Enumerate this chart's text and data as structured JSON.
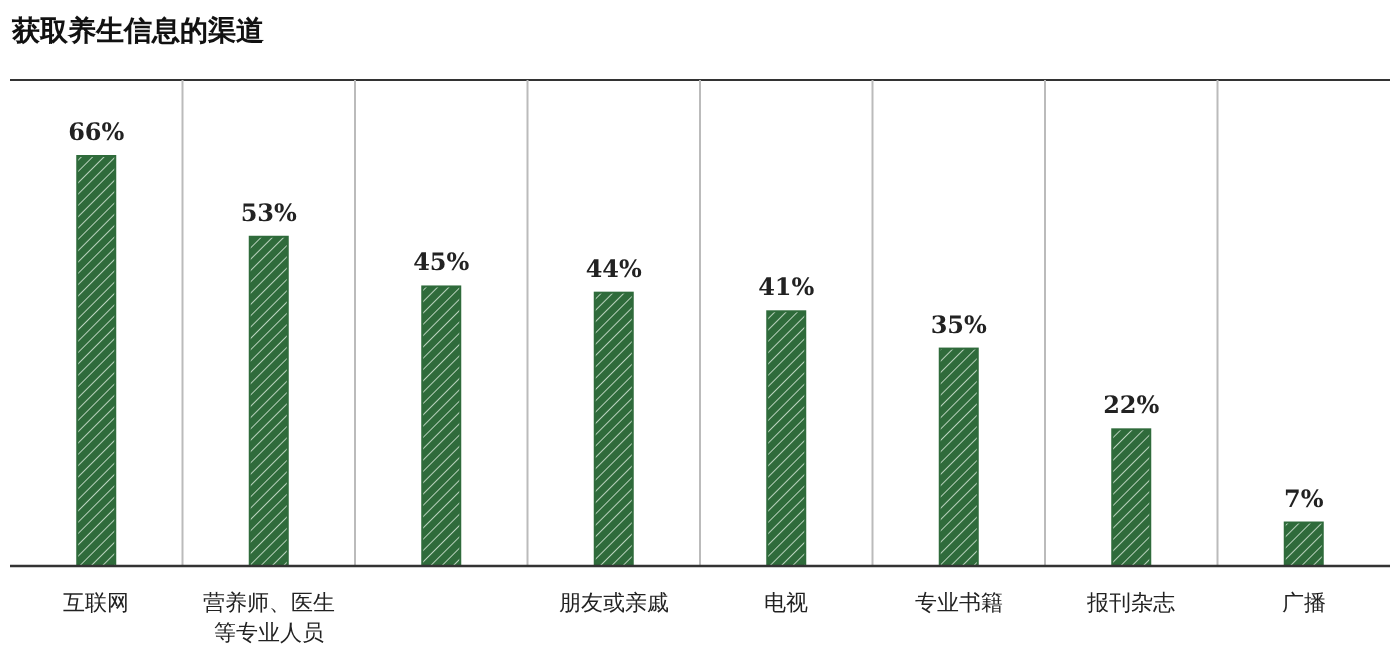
{
  "chart_data": {
    "type": "bar",
    "title": "获取养生信息的渠道",
    "categories": [
      "互联网",
      "营养师、医生等专业人员",
      null,
      "朋友或亲戚",
      "电视",
      "专业书籍",
      "报刊杂志",
      "广播"
    ],
    "values": [
      66,
      53,
      45,
      44,
      41,
      35,
      22,
      7
    ],
    "value_labels": [
      "66%",
      "53%",
      "45%",
      "44%",
      "41%",
      "35%",
      "22%",
      "7%"
    ],
    "color": "#2f6b3b",
    "grid": "x"
  }
}
